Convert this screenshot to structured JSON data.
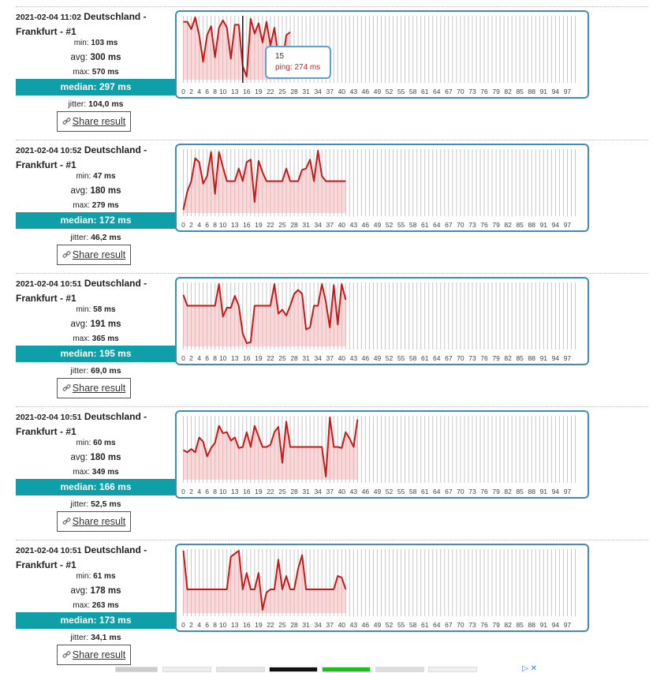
{
  "share_label": "Share result",
  "tooltip": {
    "x_value": "15",
    "label": "ping",
    "value": "274 ms"
  },
  "ad": {
    "icon": "adchoices-icon",
    "close": "✕"
  },
  "results": [
    {
      "timestamp": "2021-02-04 11:02",
      "location_line1": "Deutschland -",
      "location_line2": "Frankfurt - #1",
      "min_label": "min:",
      "min_value": "103 ms",
      "avg_label": "avg:",
      "avg_value": "300 ms",
      "max_label": "max:",
      "max_value": "570 ms",
      "median_label": "median:",
      "median_value": "297 ms",
      "jitter_label": "jitter:",
      "jitter_value": "104,0 ms"
    },
    {
      "timestamp": "2021-02-04 10:52",
      "location_line1": "Deutschland -",
      "location_line2": "Frankfurt - #1",
      "min_label": "min:",
      "min_value": "47 ms",
      "avg_label": "avg:",
      "avg_value": "180 ms",
      "max_label": "max:",
      "max_value": "279 ms",
      "median_label": "median:",
      "median_value": "172 ms",
      "jitter_label": "jitter:",
      "jitter_value": "46,2 ms"
    },
    {
      "timestamp": "2021-02-04 10:51",
      "location_line1": "Deutschland -",
      "location_line2": "Frankfurt - #1",
      "min_label": "min:",
      "min_value": "58 ms",
      "avg_label": "avg:",
      "avg_value": "191 ms",
      "max_label": "max:",
      "max_value": "365 ms",
      "median_label": "median:",
      "median_value": "195 ms",
      "jitter_label": "jitter:",
      "jitter_value": "69,0 ms"
    },
    {
      "timestamp": "2021-02-04 10:51",
      "location_line1": "Deutschland -",
      "location_line2": "Frankfurt - #1",
      "min_label": "min:",
      "min_value": "60 ms",
      "avg_label": "avg:",
      "avg_value": "180 ms",
      "max_label": "max:",
      "max_value": "349 ms",
      "median_label": "median:",
      "median_value": "166 ms",
      "jitter_label": "jitter:",
      "jitter_value": "52,5 ms"
    },
    {
      "timestamp": "2021-02-04 10:51",
      "location_line1": "Deutschland -",
      "location_line2": "Frankfurt - #1",
      "min_label": "min:",
      "min_value": "61 ms",
      "avg_label": "avg:",
      "avg_value": "178 ms",
      "max_label": "max:",
      "max_value": "263 ms",
      "median_label": "median:",
      "median_value": "173 ms",
      "jitter_label": "jitter:",
      "jitter_value": "34,1 ms"
    }
  ],
  "colors": {
    "line": "#c41a1a",
    "fill": "#f7d3d5",
    "border": "#3d8cbf",
    "median_bg": "#0e9fa8"
  },
  "chart_data": [
    {
      "type": "area",
      "x_range": [
        0,
        99
      ],
      "x_tick_labels": [
        "0",
        "2",
        "4",
        "6",
        "8",
        "10",
        "13",
        "16",
        "19",
        "22",
        "25",
        "28",
        "31",
        "34",
        "37",
        "40",
        "43",
        "46",
        "49",
        "52",
        "55",
        "58",
        "61",
        "64",
        "67",
        "70",
        "73",
        "76",
        "79",
        "82",
        "85",
        "88",
        "91",
        "94",
        "97"
      ],
      "series": [
        {
          "values": [
            540,
            540,
            490,
            570,
            450,
            270,
            450,
            510,
            300,
            500,
            550,
            500,
            290,
            520,
            520,
            240,
            170,
            560,
            460,
            530,
            400,
            540,
            380,
            500,
            300,
            250,
            450,
            470
          ]
        }
      ],
      "highlight_x": 15
    },
    {
      "type": "area",
      "x_range": [
        0,
        99
      ],
      "x_tick_labels": [
        "0",
        "2",
        "4",
        "6",
        "8",
        "10",
        "13",
        "16",
        "19",
        "22",
        "25",
        "28",
        "31",
        "34",
        "37",
        "40",
        "43",
        "46",
        "49",
        "52",
        "55",
        "58",
        "61",
        "64",
        "67",
        "70",
        "73",
        "76",
        "79",
        "82",
        "85",
        "88",
        "91",
        "94",
        "97"
      ],
      "series": [
        {
          "values": [
            47,
            120,
            160,
            250,
            235,
            150,
            180,
            275,
            110,
            275,
            215,
            160,
            160,
            160,
            210,
            160,
            235,
            245,
            78,
            240,
            195,
            160,
            160,
            160,
            160,
            160,
            210,
            160,
            160,
            160,
            205,
            210,
            245,
            160,
            280,
            180,
            160,
            160,
            160,
            160,
            160,
            160
          ]
        }
      ]
    },
    {
      "type": "area",
      "x_range": [
        0,
        99
      ],
      "x_tick_labels": [
        "0",
        "2",
        "4",
        "6",
        "8",
        "10",
        "13",
        "16",
        "19",
        "22",
        "25",
        "28",
        "31",
        "34",
        "37",
        "40",
        "43",
        "46",
        "49",
        "52",
        "55",
        "58",
        "61",
        "64",
        "67",
        "70",
        "73",
        "76",
        "79",
        "82",
        "85",
        "88",
        "91",
        "94",
        "97"
      ],
      "series": [
        {
          "values": [
            305,
            250,
            250,
            250,
            250,
            250,
            250,
            250,
            250,
            360,
            195,
            240,
            240,
            300,
            250,
            110,
            60,
            65,
            250,
            250,
            250,
            250,
            250,
            360,
            210,
            230,
            200,
            250,
            310,
            330,
            310,
            130,
            140,
            250,
            250,
            360,
            270,
            140,
            355,
            155,
            360,
            280
          ]
        }
      ]
    },
    {
      "type": "area",
      "x_range": [
        0,
        99
      ],
      "x_tick_labels": [
        "0",
        "2",
        "4",
        "6",
        "8",
        "10",
        "13",
        "16",
        "19",
        "22",
        "25",
        "28",
        "31",
        "34",
        "37",
        "40",
        "43",
        "46",
        "49",
        "52",
        "55",
        "58",
        "61",
        "64",
        "67",
        "70",
        "73",
        "76",
        "79",
        "82",
        "85",
        "88",
        "91",
        "94",
        "97"
      ],
      "series": [
        {
          "values": [
            185,
            175,
            190,
            175,
            245,
            225,
            155,
            195,
            220,
            300,
            265,
            270,
            230,
            245,
            195,
            200,
            270,
            200,
            300,
            250,
            200,
            200,
            210,
            270,
            295,
            125,
            320,
            200,
            200,
            200,
            200,
            200,
            200,
            200,
            200,
            200,
            60,
            340,
            200,
            200,
            195,
            270,
            240,
            200,
            330
          ]
        }
      ]
    },
    {
      "type": "area",
      "x_range": [
        0,
        99
      ],
      "x_tick_labels": [
        "0",
        "2",
        "4",
        "6",
        "8",
        "10",
        "13",
        "16",
        "19",
        "22",
        "25",
        "28",
        "31",
        "34",
        "37",
        "40",
        "43",
        "46",
        "49",
        "52",
        "55",
        "58",
        "61",
        "64",
        "67",
        "70",
        "73",
        "76",
        "79",
        "82",
        "85",
        "88",
        "91",
        "94",
        "97"
      ],
      "series": [
        {
          "values": [
            260,
            130,
            130,
            130,
            130,
            130,
            130,
            130,
            130,
            130,
            130,
            130,
            240,
            250,
            260,
            130,
            185,
            130,
            130,
            185,
            61,
            120,
            130,
            130,
            230,
            130,
            175,
            130,
            130,
            200,
            245,
            130,
            130,
            130,
            130,
            130,
            130,
            130,
            130,
            175,
            170,
            130
          ]
        }
      ]
    }
  ]
}
